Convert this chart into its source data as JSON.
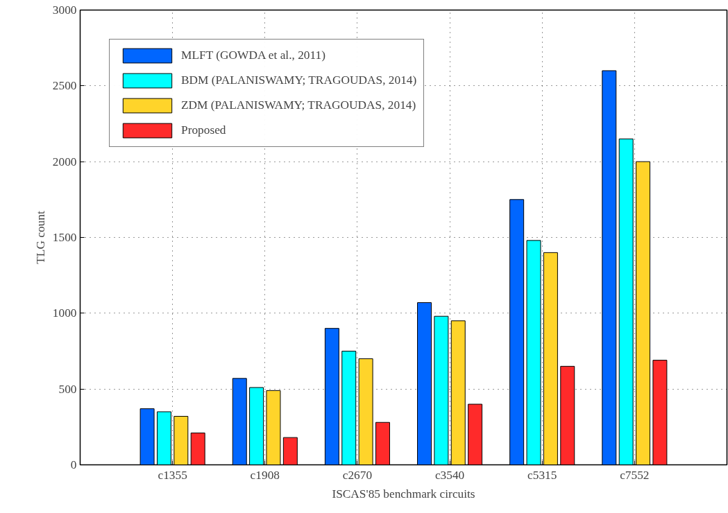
{
  "chart_data": {
    "type": "bar",
    "xlabel": "ISCAS'85 benchmark circuits",
    "ylabel": "TLG count",
    "categories": [
      "c1355",
      "c1908",
      "c2670",
      "c3540",
      "c5315",
      "c7552"
    ],
    "series": [
      {
        "name": "MLFT (GOWDA et al., 2011)",
        "color": "#0066ff",
        "values": [
          370,
          570,
          900,
          1070,
          1750,
          2600
        ]
      },
      {
        "name": "BDM (PALANISWAMY; TRAGOUDAS, 2014)",
        "color": "#00ffff",
        "values": [
          350,
          510,
          750,
          980,
          1480,
          2150
        ]
      },
      {
        "name": "ZDM (PALANISWAMY; TRAGOUDAS, 2014)",
        "color": "#ffd42a",
        "values": [
          320,
          490,
          700,
          950,
          1400,
          2000
        ]
      },
      {
        "name": "Proposed",
        "color": "#ff2a2a",
        "values": [
          210,
          180,
          280,
          400,
          650,
          690
        ]
      }
    ],
    "ylim": [
      0,
      3000
    ],
    "yticks": [
      0,
      500,
      1000,
      1500,
      2000,
      2500,
      3000
    ],
    "grid": true,
    "legend": "top left"
  }
}
